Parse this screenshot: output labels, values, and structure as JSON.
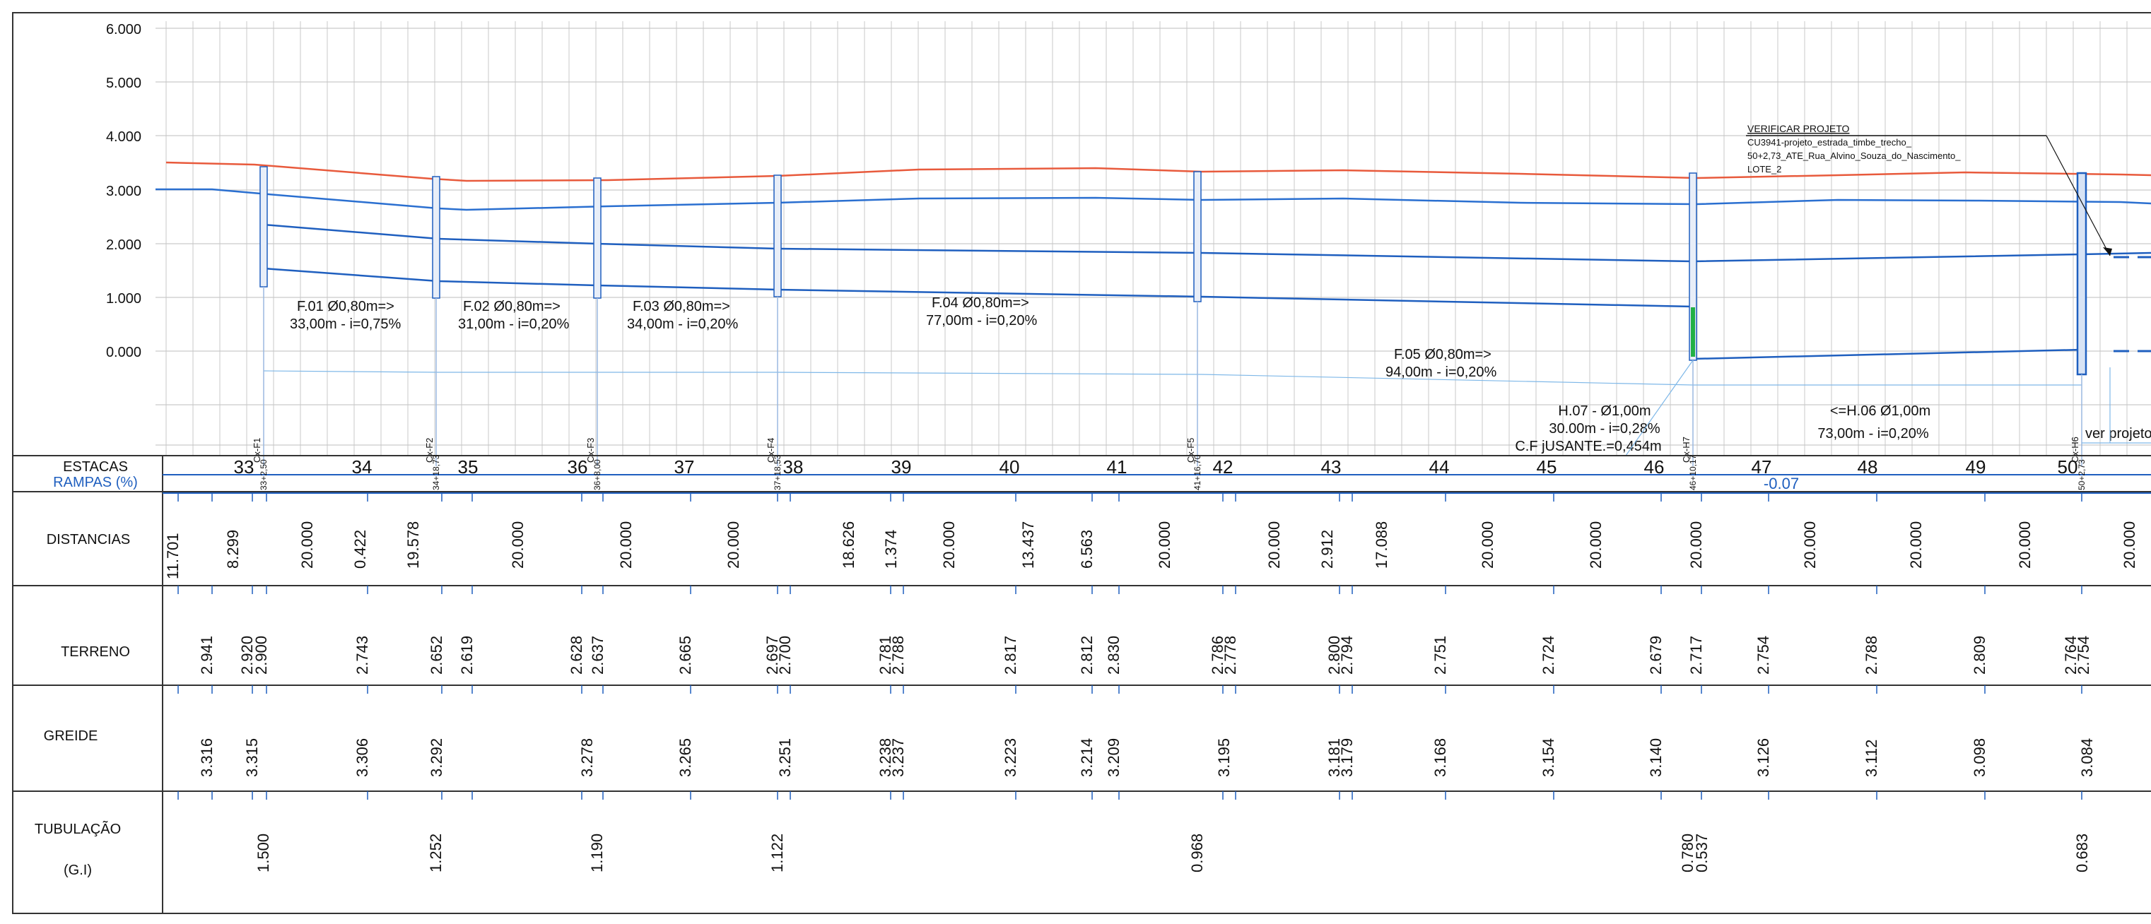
{
  "y_axis": {
    "ticks": [
      "6.000",
      "5.000",
      "4.000",
      "3.000",
      "2.000",
      "1.000",
      "0.000"
    ]
  },
  "colors": {
    "terrain": "#e85a3c",
    "pipe": "#1f5fbf",
    "greide": "#2a6fd0",
    "grid": "#c9c9c9",
    "accent_green": "#22b045",
    "text": "#111111"
  },
  "note": {
    "lines": [
      "VERIFICAR PROJETO",
      "CU3941-projeto_estrada_timbe_trecho_",
      "50+2,73_ATE_Rua_Alvino_Souza_do_Nascimento_",
      "LOTE_2"
    ]
  },
  "pipe_labels": [
    {
      "l1": "F.01  Ø0,80m=>",
      "l2": "33,00m - i=0,75%"
    },
    {
      "l1": "F.02  Ø0,80m=>",
      "l2": "31,00m - i=0,20%"
    },
    {
      "l1": "F.03  Ø0,80m=>",
      "l2": "34,00m - i=0,20%"
    },
    {
      "l1": "F.04  Ø0,80m=>",
      "l2": "77,00m - i=0,20%"
    },
    {
      "l1": "F.05  Ø0,80m=>",
      "l2": "94,00m - i=0,20%"
    }
  ],
  "h07": {
    "l1": "H.07 - Ø1,00m",
    "l2": "30.00m - i=0,28%",
    "l3": "C.F jUSANTE.=0,454m"
  },
  "h06": {
    "l1": "<=H.06  Ø1,00m",
    "l2": "73,00m - i=0,20%"
  },
  "ver_projeto": "ver projeto",
  "manholes": [
    "Cx-F1",
    "Cx-F2",
    "Cx-F3",
    "Cx-F4",
    "Cx-F5",
    "Cx-H7",
    "Cx-H6"
  ],
  "table": {
    "headers": {
      "estacas": "ESTACAS",
      "rampas": "RAMPAS  (%)",
      "distancias": "DISTANCIAS",
      "terreno": "TERRENO",
      "greide": "GREIDE",
      "tubulacao": "TUBULAÇÃO",
      "tubulacao_sub": "(G.I)"
    },
    "stations": [
      "33",
      "34",
      "35",
      "36",
      "37",
      "38",
      "39",
      "40",
      "41",
      "42",
      "43",
      "44",
      "45",
      "46",
      "47",
      "48",
      "49",
      "50"
    ],
    "station_marks": [
      "33+2,50",
      "34+18,73",
      "36+8,00",
      "37+18,53",
      "41+16,70",
      "46+10,17",
      "50+2,73"
    ],
    "rampa_value": "-0.07",
    "distancias": [
      "11.701",
      "8.299",
      "20.000",
      "0.422",
      "19.578",
      "20.000",
      "20.000",
      "20.000",
      "18.626",
      "1.374",
      "20.000",
      "13.437",
      "6.563",
      "20.000",
      "20.000",
      "2.912",
      "17.088",
      "20.000",
      "20.000",
      "20.000",
      "20.000",
      "20.000",
      "20.000",
      "20.000"
    ],
    "terreno": [
      "2.941",
      "2.920",
      "2.900",
      "2.743",
      "2.652",
      "2.619",
      "2.628",
      "2.637",
      "2.665",
      "2.697",
      "2.700",
      "2.781",
      "2.788",
      "2.817",
      "2.812",
      "2.830",
      "2.786",
      "2.778",
      "2.800",
      "2.794",
      "2.751",
      "2.724",
      "2.679",
      "2.717",
      "2.754",
      "2.788",
      "2.809",
      "2.764",
      "2.754"
    ],
    "greide": [
      "3.316",
      "3.315",
      "3.306",
      "3.292",
      "3.278",
      "3.265",
      "3.251",
      "3.238",
      "3.237",
      "3.223",
      "3.214",
      "3.209",
      "3.195",
      "3.181",
      "3.179",
      "3.168",
      "3.154",
      "3.140",
      "3.126",
      "3.112",
      "3.098",
      "3.084"
    ],
    "tubulacao": [
      "1.500",
      "1.252",
      "1.190",
      "1.122",
      "0.968",
      "0.780",
      "0.537",
      "0.683"
    ]
  }
}
